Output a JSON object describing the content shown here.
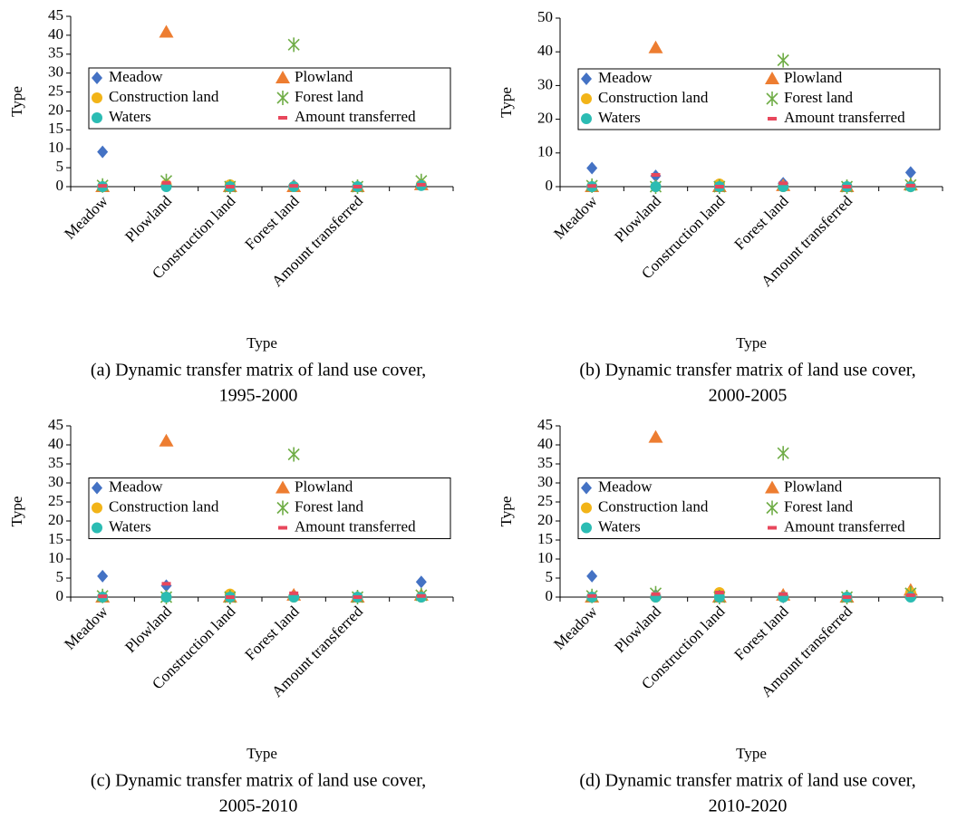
{
  "chart_data": [
    {
      "type": "scatter",
      "ylabel": "Type",
      "xlabel": "Type",
      "caption": [
        "(a) Dynamic transfer matrix of land use cover,",
        "1995-2000"
      ],
      "categories": [
        "Meadow",
        "Plowland",
        "Construction land",
        "Forest land",
        "Amount transferred",
        null
      ],
      "series": [
        {
          "name": "Meadow",
          "color": "#4472c4",
          "marker": "diamond",
          "values": [
            9.2,
            0.3,
            0,
            0.3,
            0,
            0.5
          ]
        },
        {
          "name": "Plowland",
          "color": "#ed7d31",
          "marker": "triangle",
          "values": [
            0,
            40.8,
            0,
            0,
            0,
            0.5
          ]
        },
        {
          "name": "Construction land",
          "color": "#f2b418",
          "marker": "circle",
          "values": [
            0,
            0.5,
            0.5,
            0,
            0,
            0.5
          ]
        },
        {
          "name": "Forest land",
          "color": "#70ad47",
          "marker": "star",
          "values": [
            0.3,
            1.5,
            0,
            37.5,
            0,
            1.5
          ]
        },
        {
          "name": "Waters",
          "color": "#2bbcb3",
          "marker": "circle",
          "values": [
            0,
            0,
            0,
            0,
            0,
            0.3
          ]
        },
        {
          "name": "Amount transferred",
          "color": "#e8475c",
          "marker": "dash",
          "values": [
            0.2,
            1,
            0,
            0.2,
            0,
            0.5
          ]
        }
      ],
      "ylim": [
        0,
        45
      ],
      "yticks": [
        0,
        5,
        10,
        15,
        20,
        25,
        30,
        35,
        40,
        45
      ],
      "legend": "center"
    },
    {
      "type": "scatter",
      "ylabel": "Type",
      "xlabel": "Type",
      "caption": [
        "(b) Dynamic transfer matrix of land use cover,",
        "2000-2005"
      ],
      "categories": [
        "Meadow",
        "Plowland",
        "Construction land",
        "Forest land",
        "Amount transferred",
        null
      ],
      "series": [
        {
          "name": "Meadow",
          "color": "#4472c4",
          "marker": "diamond",
          "values": [
            5.5,
            3.2,
            0,
            1,
            0,
            4.2
          ]
        },
        {
          "name": "Plowland",
          "color": "#ed7d31",
          "marker": "triangle",
          "values": [
            0,
            41.2,
            0,
            0.3,
            0,
            0.5
          ]
        },
        {
          "name": "Construction land",
          "color": "#f2b418",
          "marker": "circle",
          "values": [
            0,
            0,
            0.8,
            0,
            0,
            0
          ]
        },
        {
          "name": "Forest land",
          "color": "#70ad47",
          "marker": "star",
          "values": [
            0.3,
            0,
            0,
            37.5,
            0,
            0.5
          ]
        },
        {
          "name": "Waters",
          "color": "#2bbcb3",
          "marker": "circle",
          "values": [
            0,
            0,
            0,
            0,
            0,
            0
          ]
        },
        {
          "name": "Amount transferred",
          "color": "#e8475c",
          "marker": "dash",
          "values": [
            0.2,
            3.5,
            0,
            1,
            0,
            0.3
          ]
        }
      ],
      "ylim": [
        0,
        50
      ],
      "yticks": [
        0,
        10,
        20,
        30,
        40,
        50
      ],
      "legend": "center"
    },
    {
      "type": "scatter",
      "ylabel": "Type",
      "xlabel": "Type",
      "caption": [
        "(c) Dynamic transfer matrix of land use cover,",
        "2005-2010"
      ],
      "categories": [
        "Meadow",
        "Plowland",
        "Construction land",
        "Forest land",
        "Amount transferred",
        null
      ],
      "series": [
        {
          "name": "Meadow",
          "color": "#4472c4",
          "marker": "diamond",
          "values": [
            5.5,
            3,
            0,
            0.5,
            0,
            4
          ]
        },
        {
          "name": "Plowland",
          "color": "#ed7d31",
          "marker": "triangle",
          "values": [
            0,
            41,
            0,
            0.5,
            0,
            0.5
          ]
        },
        {
          "name": "Construction land",
          "color": "#f2b418",
          "marker": "circle",
          "values": [
            0,
            0,
            0.8,
            0,
            0,
            0
          ]
        },
        {
          "name": "Forest land",
          "color": "#70ad47",
          "marker": "star",
          "values": [
            0.3,
            0,
            0,
            37.5,
            0,
            0.5
          ]
        },
        {
          "name": "Waters",
          "color": "#2bbcb3",
          "marker": "circle",
          "values": [
            0,
            0,
            0,
            0,
            0,
            0
          ]
        },
        {
          "name": "Amount transferred",
          "color": "#e8475c",
          "marker": "dash",
          "values": [
            0.2,
            3.5,
            0,
            1,
            0,
            0.3
          ]
        }
      ],
      "ylim": [
        0,
        45
      ],
      "yticks": [
        0,
        5,
        10,
        15,
        20,
        25,
        30,
        35,
        40,
        45
      ],
      "legend": "center"
    },
    {
      "type": "scatter",
      "ylabel": "Type",
      "xlabel": "Type",
      "caption": [
        "(d) Dynamic transfer matrix of land use cover,",
        "2010-2020"
      ],
      "categories": [
        "Meadow",
        "Plowland",
        "Construction land",
        "Forest land",
        "Amount transferred",
        null
      ],
      "series": [
        {
          "name": "Meadow",
          "color": "#4472c4",
          "marker": "diamond",
          "values": [
            5.5,
            0.5,
            0.8,
            0,
            0,
            0.5
          ]
        },
        {
          "name": "Plowland",
          "color": "#ed7d31",
          "marker": "triangle",
          "values": [
            0,
            42,
            0,
            0.5,
            0,
            1.8
          ]
        },
        {
          "name": "Construction land",
          "color": "#f2b418",
          "marker": "circle",
          "values": [
            0,
            0,
            1.2,
            0,
            0,
            1.2
          ]
        },
        {
          "name": "Forest land",
          "color": "#70ad47",
          "marker": "star",
          "values": [
            0.3,
            1,
            0,
            37.8,
            0,
            1
          ]
        },
        {
          "name": "Waters",
          "color": "#2bbcb3",
          "marker": "circle",
          "values": [
            0,
            0,
            0,
            0,
            0,
            0
          ]
        },
        {
          "name": "Amount transferred",
          "color": "#e8475c",
          "marker": "dash",
          "values": [
            0.3,
            0.8,
            1.2,
            0.8,
            0,
            0.5
          ]
        }
      ],
      "ylim": [
        0,
        45
      ],
      "yticks": [
        0,
        5,
        10,
        15,
        20,
        25,
        30,
        35,
        40,
        45
      ],
      "legend": "center"
    }
  ]
}
